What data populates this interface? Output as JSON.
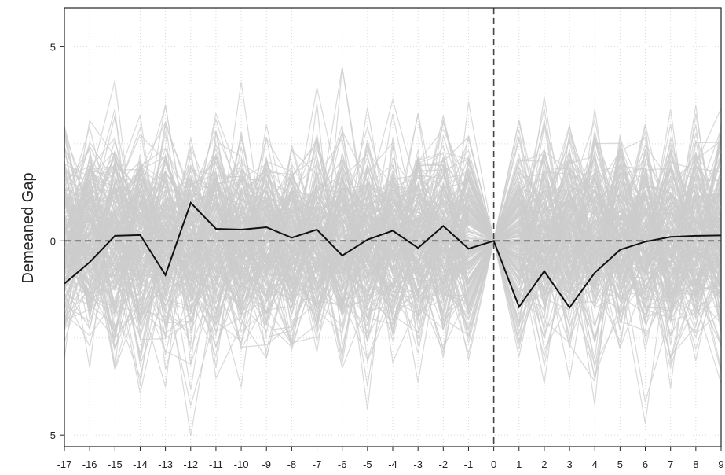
{
  "chart_data": {
    "type": "line",
    "title": "",
    "xlabel": "",
    "ylabel": "Demeaned Gap",
    "xlim": [
      -17,
      9
    ],
    "ylim": [
      -5.3,
      6.0
    ],
    "x_ticks": [
      -17,
      -16,
      -15,
      -14,
      -13,
      -12,
      -11,
      -10,
      -9,
      -8,
      -7,
      -6,
      -5,
      -4,
      -3,
      -2,
      -1,
      0,
      1,
      2,
      3,
      4,
      5,
      6,
      7,
      8,
      9
    ],
    "y_ticks": [
      -5,
      0,
      5
    ],
    "grid": true,
    "reference_lines": {
      "horizontal": 0,
      "vertical": 0
    },
    "colors": {
      "main": "#111111",
      "placebo": "#cccccc",
      "reference": "#444444",
      "grid": "#d8d8d8"
    },
    "main_series": {
      "x": [
        -17,
        -16,
        -15,
        -14,
        -13,
        -12,
        -11,
        -10,
        -9,
        -8,
        -7,
        -6,
        -5,
        -4,
        -3,
        -2,
        -1,
        0,
        1,
        2,
        3,
        4,
        5,
        6,
        7,
        8,
        9
      ],
      "values": [
        -1.1,
        -0.55,
        0.13,
        0.15,
        -0.88,
        0.98,
        0.31,
        0.29,
        0.35,
        0.08,
        0.29,
        -0.38,
        0.03,
        0.26,
        -0.18,
        0.38,
        -0.2,
        0.0,
        -1.7,
        -0.78,
        -1.72,
        -0.82,
        -0.23,
        -0.02,
        0.1,
        0.13,
        0.14
      ]
    },
    "placebo_series": {
      "count": 200,
      "sd": 1.25,
      "max_abs": 5.9
    }
  }
}
